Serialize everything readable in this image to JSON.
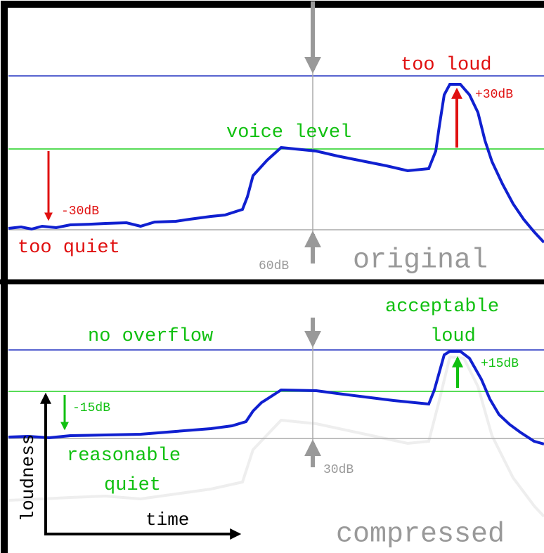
{
  "top_panel": {
    "too_loud": "too loud",
    "plus_db": "+30dB",
    "voice_level": "voice level",
    "minus_db": "-30dB",
    "too_quiet": "too quiet",
    "range": "60dB",
    "caption": "original"
  },
  "bottom_panel": {
    "acceptable": "acceptable",
    "loud": "loud",
    "no_overflow": "no overflow",
    "plus_db": "+15dB",
    "minus_db": "-15dB",
    "reasonable": "reasonable",
    "quiet": "quiet",
    "range": "30dB",
    "caption": "compressed",
    "y_axis": "loudness",
    "x_axis": "time"
  }
}
